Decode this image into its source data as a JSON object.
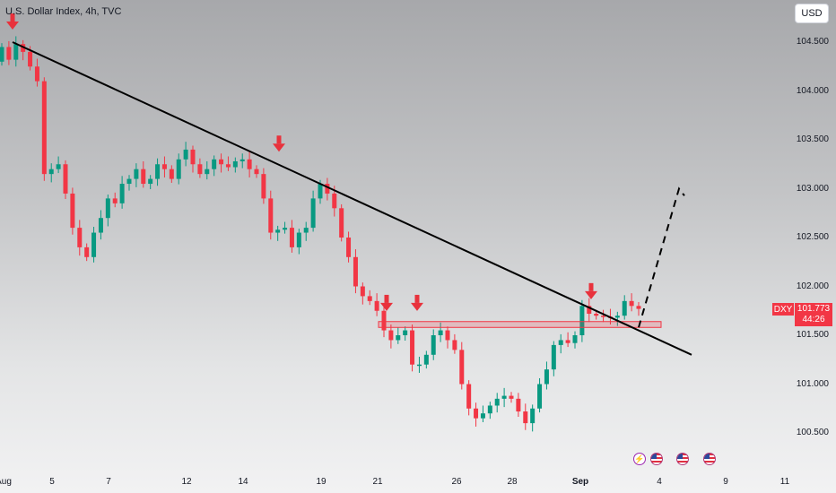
{
  "header": {
    "title": "U.S. Dollar Index, 4h, TVC"
  },
  "toolbar": {
    "currency": "USD"
  },
  "price_label": {
    "symbol": "DXY",
    "price": "101.773",
    "countdown": "44:26"
  },
  "events": [
    {
      "icon": "lightning-icon",
      "glyph": "⚡"
    },
    {
      "icon": "us-flag-icon"
    },
    {
      "icon": "us-flag-icon"
    },
    {
      "icon": "us-flag-icon"
    }
  ],
  "colors": {
    "up": "#089981",
    "down": "#f23645",
    "trendline": "#000000",
    "zone": "#f23645",
    "arrow": "#e8323c"
  },
  "chart_data": {
    "type": "candlestick",
    "title": "U.S. Dollar Index, 4h, TVC",
    "y_ticks": [
      "104.500",
      "104.000",
      "103.500",
      "103.000",
      "102.500",
      "102.000",
      "101.500",
      "101.000",
      "100.500"
    ],
    "y_range": [
      100.28,
      104.82
    ],
    "x_ticks": [
      "Aug",
      "5",
      "7",
      "12",
      "14",
      "19",
      "21",
      "26",
      "28",
      "Sep",
      "4",
      "9",
      "11"
    ],
    "x_ticks_bold": [
      "Sep"
    ],
    "candles_approx": [
      [
        104.3,
        104.45
      ],
      [
        104.45,
        104.32
      ],
      [
        104.32,
        104.48
      ],
      [
        104.48,
        104.4
      ],
      [
        104.4,
        104.25
      ],
      [
        104.25,
        104.1
      ],
      [
        104.1,
        103.15
      ],
      [
        103.15,
        103.2
      ],
      [
        103.2,
        103.25
      ],
      [
        103.25,
        102.95
      ],
      [
        102.95,
        102.6
      ],
      [
        102.6,
        102.4
      ],
      [
        102.4,
        102.3
      ],
      [
        102.3,
        102.55
      ],
      [
        102.55,
        102.7
      ],
      [
        102.7,
        102.9
      ],
      [
        102.9,
        102.85
      ],
      [
        102.85,
        103.05
      ],
      [
        103.05,
        103.1
      ],
      [
        103.1,
        103.2
      ],
      [
        103.2,
        103.05
      ],
      [
        103.05,
        103.1
      ],
      [
        103.1,
        103.25
      ],
      [
        103.25,
        103.2
      ],
      [
        103.2,
        103.1
      ],
      [
        103.1,
        103.3
      ],
      [
        103.3,
        103.4
      ],
      [
        103.4,
        103.25
      ],
      [
        103.25,
        103.15
      ],
      [
        103.15,
        103.2
      ],
      [
        103.2,
        103.3
      ],
      [
        103.3,
        103.25
      ],
      [
        103.25,
        103.22
      ],
      [
        103.22,
        103.28
      ],
      [
        103.28,
        103.3
      ],
      [
        103.3,
        103.2
      ],
      [
        103.2,
        103.15
      ],
      [
        103.15,
        102.9
      ],
      [
        102.9,
        102.55
      ],
      [
        102.55,
        102.58
      ],
      [
        102.58,
        102.6
      ],
      [
        102.6,
        102.4
      ],
      [
        102.4,
        102.55
      ],
      [
        102.55,
        102.6
      ],
      [
        102.6,
        102.9
      ],
      [
        102.9,
        103.05
      ],
      [
        103.05,
        102.95
      ],
      [
        102.95,
        102.8
      ],
      [
        102.8,
        102.5
      ],
      [
        102.5,
        102.3
      ],
      [
        102.3,
        102.0
      ],
      [
        102.0,
        101.9
      ],
      [
        101.9,
        101.85
      ],
      [
        101.85,
        101.75
      ],
      [
        101.75,
        101.55
      ],
      [
        101.55,
        101.45
      ],
      [
        101.45,
        101.5
      ],
      [
        101.5,
        101.55
      ],
      [
        101.55,
        101.2
      ],
      [
        101.2,
        101.2
      ],
      [
        101.2,
        101.3
      ],
      [
        101.3,
        101.5
      ],
      [
        101.5,
        101.55
      ],
      [
        101.55,
        101.45
      ],
      [
        101.45,
        101.35
      ],
      [
        101.35,
        101.0
      ],
      [
        101.0,
        100.75
      ],
      [
        100.75,
        100.65
      ],
      [
        100.65,
        100.7
      ],
      [
        100.7,
        100.78
      ],
      [
        100.78,
        100.85
      ],
      [
        100.85,
        100.88
      ],
      [
        100.88,
        100.85
      ],
      [
        100.85,
        100.72
      ],
      [
        100.72,
        100.6
      ],
      [
        100.6,
        100.75
      ],
      [
        100.75,
        101.0
      ],
      [
        101.0,
        101.15
      ],
      [
        101.15,
        101.4
      ],
      [
        101.4,
        101.45
      ],
      [
        101.45,
        101.42
      ],
      [
        101.42,
        101.5
      ],
      [
        101.5,
        101.8
      ],
      [
        101.8,
        101.72
      ],
      [
        101.72,
        101.7
      ],
      [
        101.7,
        101.69
      ],
      [
        101.69,
        101.68
      ],
      [
        101.68,
        101.7
      ],
      [
        101.7,
        101.85
      ],
      [
        101.85,
        101.8
      ],
      [
        101.8,
        101.77
      ]
    ],
    "trendline": {
      "from": [
        "Aug",
        104.5
      ],
      "to": [
        "Sep",
        101.3
      ]
    },
    "support_zone": [
      101.58,
      101.64
    ],
    "marked_highs": [
      104.5,
      103.25,
      101.62,
      101.62,
      101.74
    ],
    "projection": {
      "from": 101.58,
      "to": 103.0
    }
  }
}
